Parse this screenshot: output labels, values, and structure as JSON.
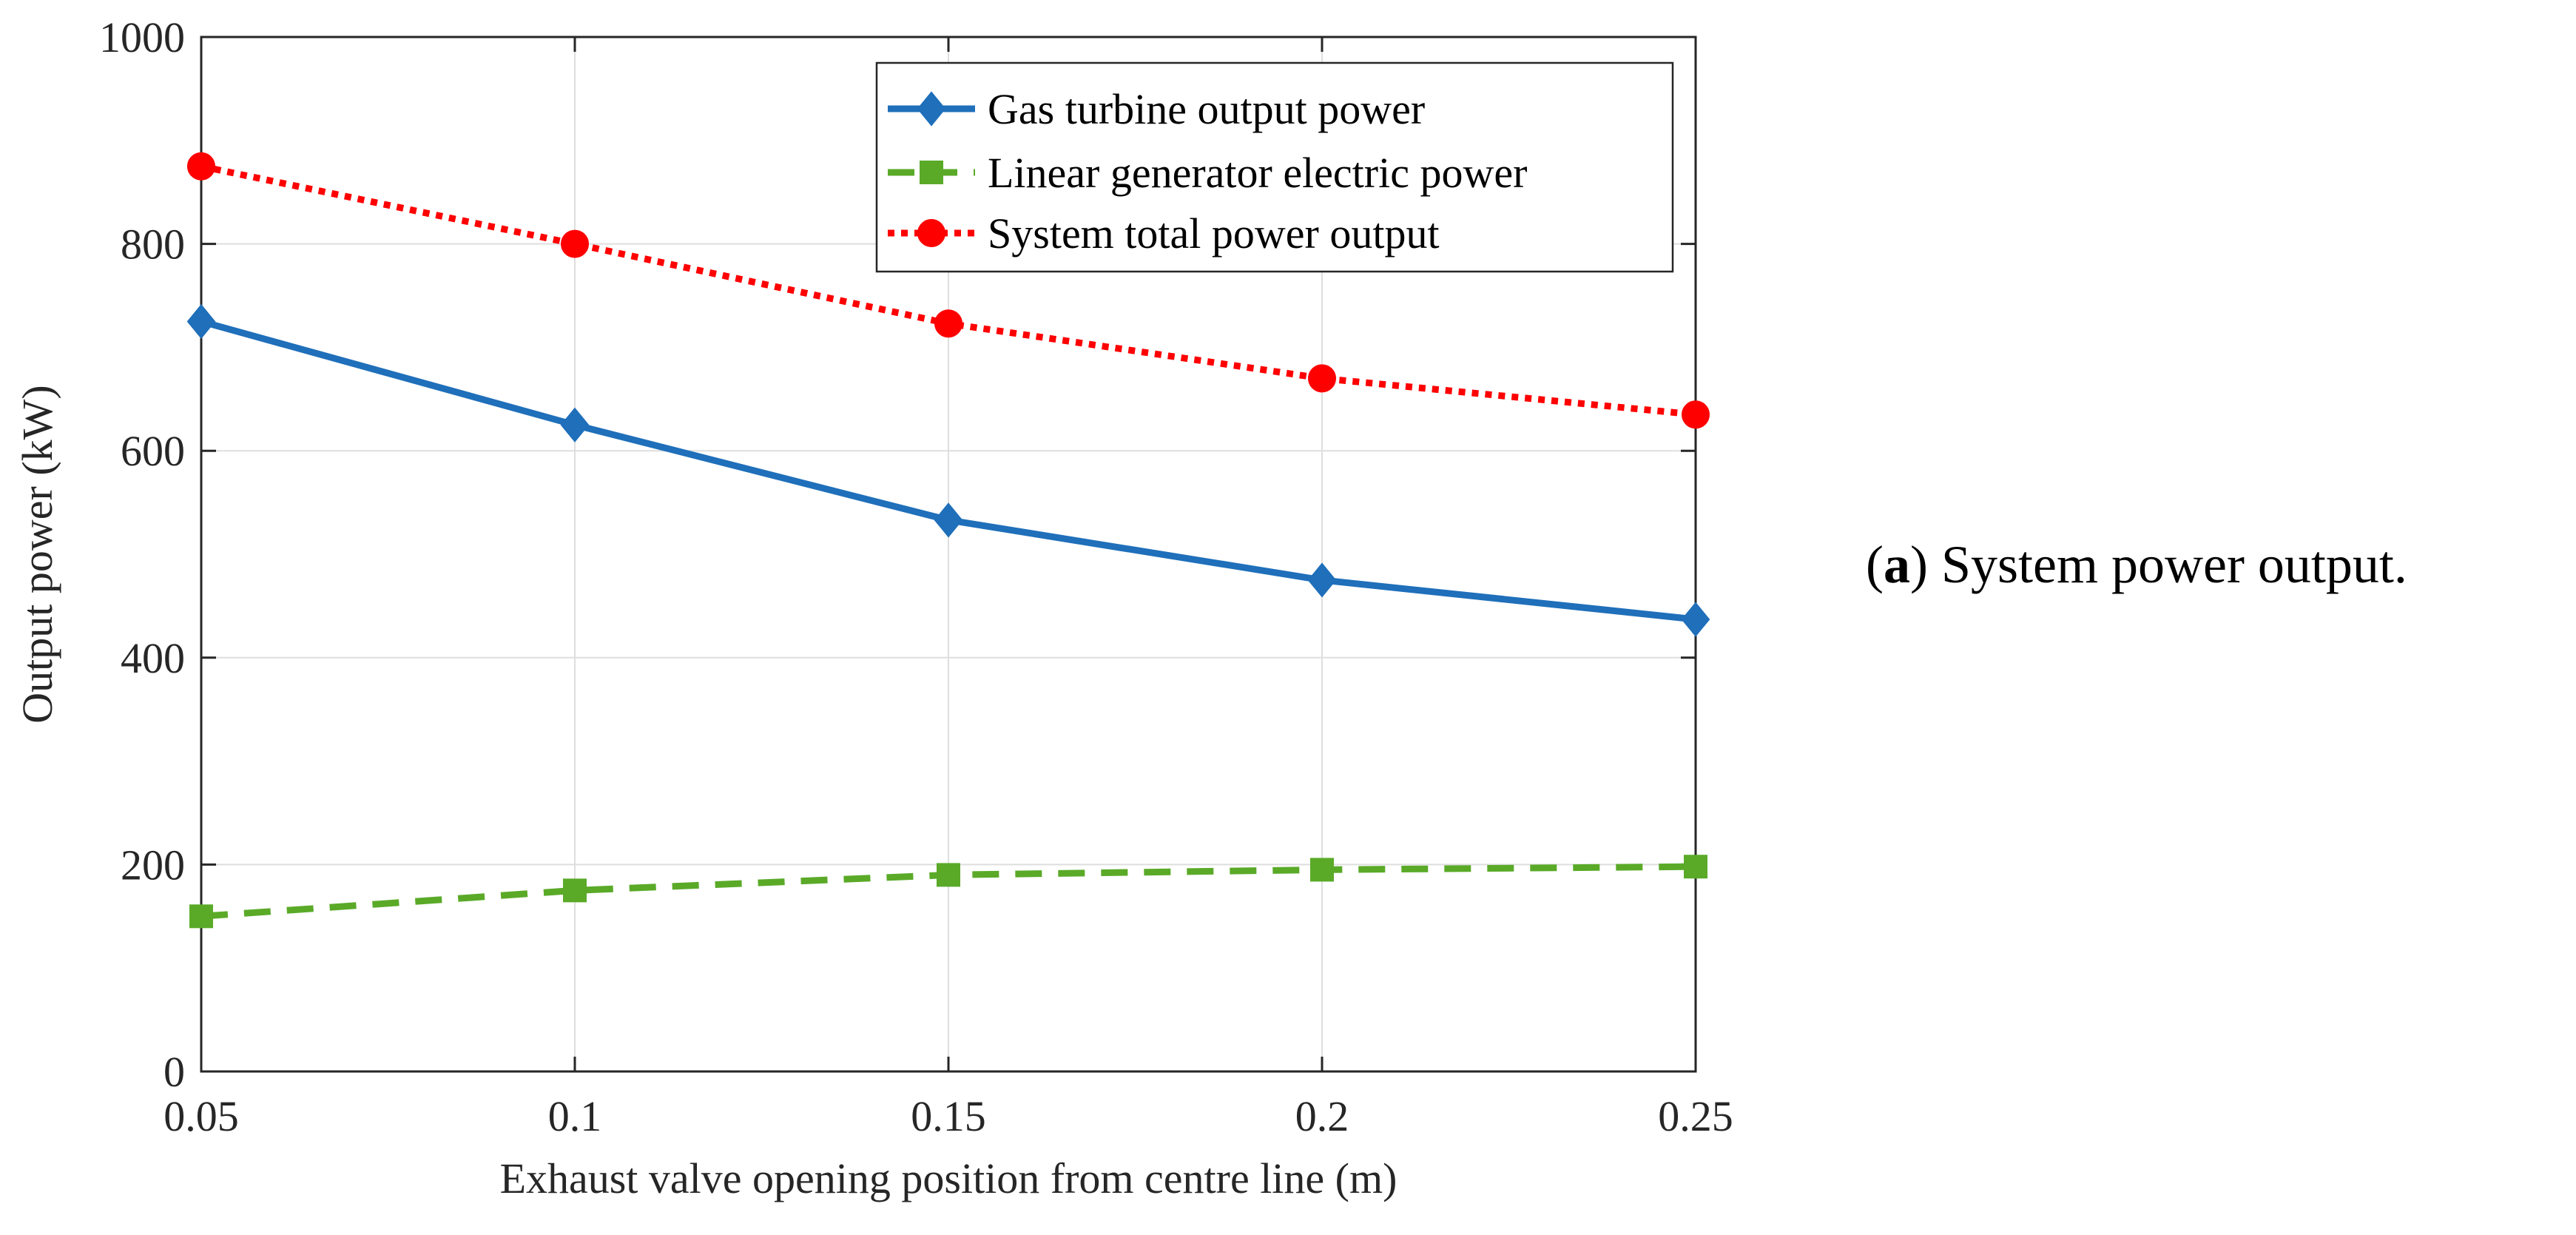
{
  "chart_data": {
    "type": "line",
    "title": "",
    "xlabel": "Exhaust valve opening position from centre line (m)",
    "ylabel": "Output power (kW)",
    "x": [
      0.05,
      0.1,
      0.15,
      0.2,
      0.25
    ],
    "x_tick_labels": [
      "0.05",
      "0.1",
      "0.15",
      "0.2",
      "0.25"
    ],
    "y_ticks": [
      0,
      200,
      400,
      600,
      800,
      1000
    ],
    "y_tick_labels": [
      "0",
      "200",
      "400",
      "600",
      "800",
      "1000"
    ],
    "xlim": [
      0.05,
      0.25
    ],
    "ylim": [
      0,
      1000
    ],
    "grid": true,
    "legend_position": "top-right",
    "series": [
      {
        "name": "Gas turbine output power",
        "values": [
          725,
          625,
          533,
          475,
          437
        ],
        "color": "#1f6fba",
        "line_style": "solid",
        "marker": "diamond"
      },
      {
        "name": "Linear generator electric power",
        "values": [
          150,
          175,
          190,
          195,
          198
        ],
        "color": "#5aaa28",
        "line_style": "dashed",
        "marker": "square"
      },
      {
        "name": "System total power output",
        "values": [
          875,
          800,
          723,
          670,
          635
        ],
        "color": "#ff0000",
        "line_style": "dotted",
        "marker": "circle"
      }
    ]
  },
  "caption": {
    "label": "a",
    "text": "System power output."
  }
}
